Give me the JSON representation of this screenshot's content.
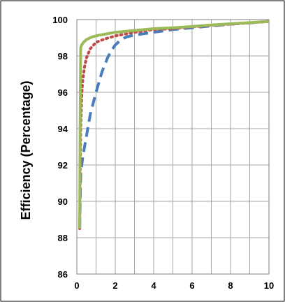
{
  "chart_data": {
    "type": "line",
    "title": "",
    "xlabel": "",
    "ylabel": "Efficiency (Percentage)",
    "xlim": [
      0,
      10
    ],
    "ylim": [
      86,
      100
    ],
    "x_ticks": [
      0,
      2,
      4,
      6,
      8,
      10
    ],
    "y_ticks": [
      86,
      88,
      90,
      92,
      94,
      96,
      98,
      100
    ],
    "x_tick_labels": [
      "0",
      "2",
      "4",
      "6",
      "8",
      "10"
    ],
    "y_tick_labels": [
      "86",
      "88",
      "90",
      "92",
      "94",
      "96",
      "98",
      "100"
    ],
    "grid": true,
    "legend": "none",
    "series": [
      {
        "color": "#4A7EBB",
        "style": "dashed",
        "x": [
          0.15,
          0.2,
          0.3,
          0.5,
          0.7,
          1.0,
          1.3,
          1.6,
          1.8,
          2.0,
          2.3,
          2.6,
          3.0,
          4.0,
          5.0,
          6.0,
          7.0,
          8.0,
          9.0,
          10.0
        ],
        "y": [
          88.5,
          91.5,
          92.4,
          93.6,
          94.8,
          96.0,
          97.1,
          97.9,
          98.3,
          98.6,
          98.9,
          99.05,
          99.15,
          99.3,
          99.45,
          99.55,
          99.65,
          99.75,
          99.82,
          99.9
        ]
      },
      {
        "color": "#BE4B48",
        "style": "dotted",
        "x": [
          0.15,
          0.2,
          0.25,
          0.3,
          0.4,
          0.5,
          0.7,
          1.0,
          1.5,
          2.0,
          3.0,
          4.0,
          5.0,
          6.0,
          7.0,
          8.0,
          9.0,
          10.0
        ],
        "y": [
          88.5,
          94.0,
          95.8,
          96.6,
          97.4,
          97.9,
          98.4,
          98.75,
          98.95,
          99.1,
          99.3,
          99.45,
          99.5,
          99.6,
          99.68,
          99.75,
          99.82,
          99.9
        ]
      },
      {
        "color": "#9BBB59",
        "style": "solid",
        "x": [
          0.15,
          0.17,
          0.2,
          0.25,
          0.35,
          0.5,
          0.8,
          1.2,
          2.0,
          3.0,
          4.0,
          5.0,
          6.0,
          7.0,
          8.0,
          9.0,
          10.0
        ],
        "y": [
          88.5,
          94.0,
          98.45,
          98.6,
          98.75,
          98.9,
          99.05,
          99.15,
          99.3,
          99.4,
          99.5,
          99.55,
          99.62,
          99.7,
          99.77,
          99.83,
          99.9
        ]
      }
    ]
  }
}
